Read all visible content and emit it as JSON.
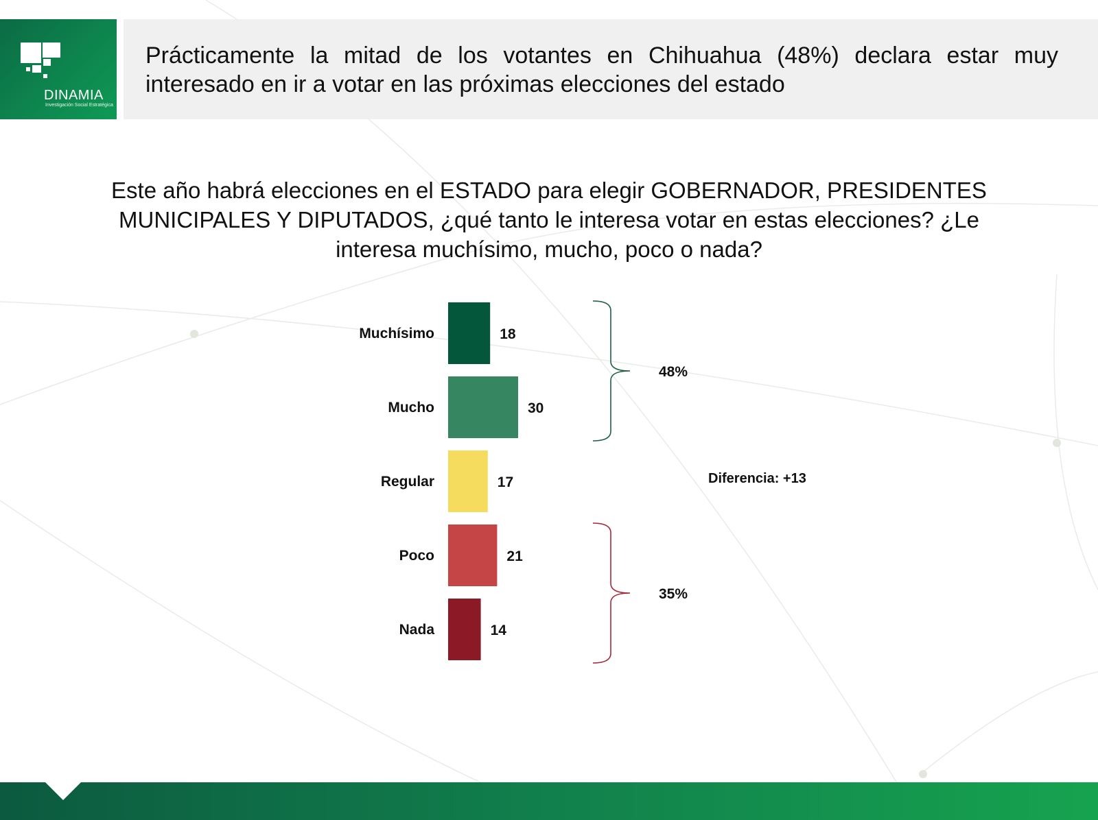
{
  "logo": {
    "name": "DINAMIA",
    "tagline": "Investigación Social Estratégica"
  },
  "header": {
    "title": "Prácticamente la mitad de los votantes en Chihuahua (48%) declara estar muy interesado en ir a votar en las próximas elecciones del estado"
  },
  "question": "Este año habrá elecciones en el ESTADO para elegir GOBERNADOR, PRESIDENTES MUNICIPALES Y DIPUTADOS, ¿qué tanto le interesa votar en estas elecciones? ¿Le interesa muchísimo, mucho, poco o nada?",
  "chart_data": {
    "type": "bar",
    "orientation": "horizontal",
    "categories": [
      "Muchísimo",
      "Mucho",
      "Regular",
      "Poco",
      "Nada"
    ],
    "values": [
      18,
      30,
      17,
      21,
      14
    ],
    "colors": [
      "#04573a",
      "#358661",
      "#f5dc5e",
      "#c54547",
      "#8c1a26"
    ],
    "groups": [
      {
        "label": "48%",
        "categories": [
          "Muchísimo",
          "Mucho"
        ],
        "color": "#1d5e45"
      },
      {
        "label": "35%",
        "categories": [
          "Poco",
          "Nada"
        ],
        "color": "#a6283a"
      }
    ],
    "annotation": "Diferencia: +13",
    "grid": false
  },
  "colors": {
    "brand_green": "#0f9a55",
    "header_band": "#f0f0f0",
    "footer_green": "#11804c"
  }
}
